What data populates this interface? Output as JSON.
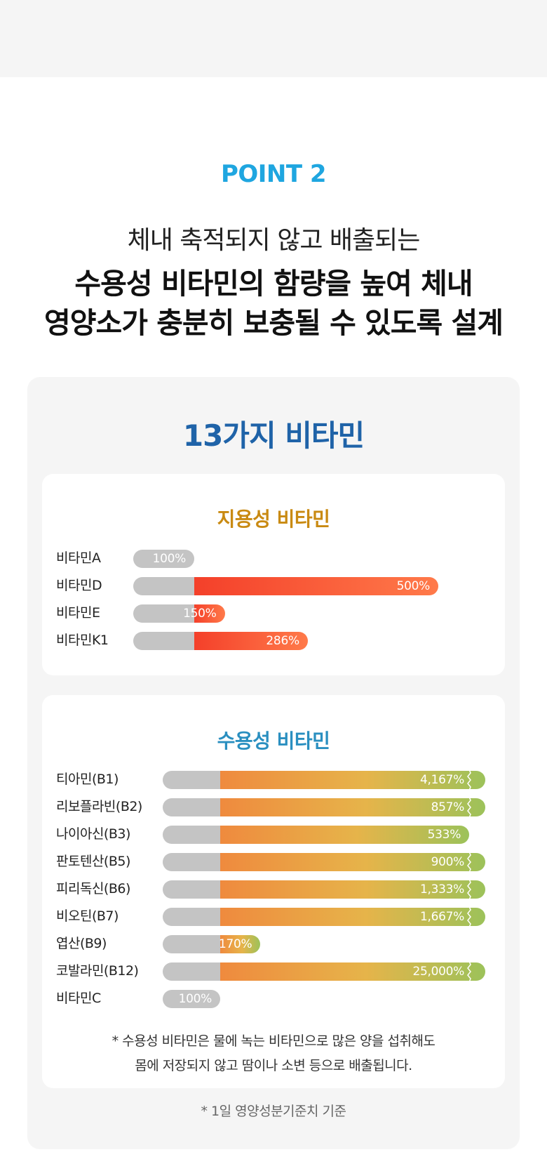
{
  "header": {
    "point_label": "POINT 2",
    "line1": "체내 축적되지 않고 배출되는",
    "line2": "수용성 비타민의 함량을 높여 체내",
    "line3": "영양소가 충분히 보충될 수 있도록 설계"
  },
  "panel_title": "13가지 비타민",
  "chart_data": [
    {
      "type": "bar",
      "title": "지용성 비타민",
      "categories": [
        "비타민A",
        "비타민D",
        "비타민E",
        "비타민K1"
      ],
      "values": [
        100,
        500,
        150,
        286
      ],
      "value_labels": [
        "100%",
        "500%",
        "150%",
        "286%"
      ],
      "truncated": [
        false,
        false,
        false,
        false
      ],
      "orientation": "horizontal",
      "colors": {
        "base": "#c4c4c4",
        "fill_start": "#f4402a",
        "fill_end": "#ff7a4a"
      }
    },
    {
      "type": "bar",
      "title": "수용성 비타민",
      "categories": [
        "티아민(B1)",
        "리보플라빈(B2)",
        "나이아신(B3)",
        "판토텐산(B5)",
        "피리독신(B6)",
        "비오틴(B7)",
        "엽산(B9)",
        "코발라민(B12)",
        "비타민C"
      ],
      "values": [
        4167,
        857,
        533,
        900,
        1333,
        1667,
        170,
        25000,
        100
      ],
      "value_labels": [
        "4,167%",
        "857%",
        "533%",
        "900%",
        "1,333%",
        "1,667%",
        "170%",
        "25,000%",
        "100%"
      ],
      "truncated": [
        true,
        true,
        false,
        true,
        true,
        true,
        false,
        true,
        false
      ],
      "orientation": "horizontal",
      "colors": {
        "base": "#c4c4c4",
        "fill_start": "#ef8a3e",
        "fill_mid": "#e6b44a",
        "fill_end": "#9cc25a"
      }
    }
  ],
  "note": {
    "line1": "* 수용성 비타민은 물에 녹는 비타민으로 많은 양을 섭취해도",
    "line2": "몸에 저장되지 않고 땀이나 소변 등으로 배출됩니다."
  },
  "footnote": "* 1일 영양성분기준치 기준"
}
